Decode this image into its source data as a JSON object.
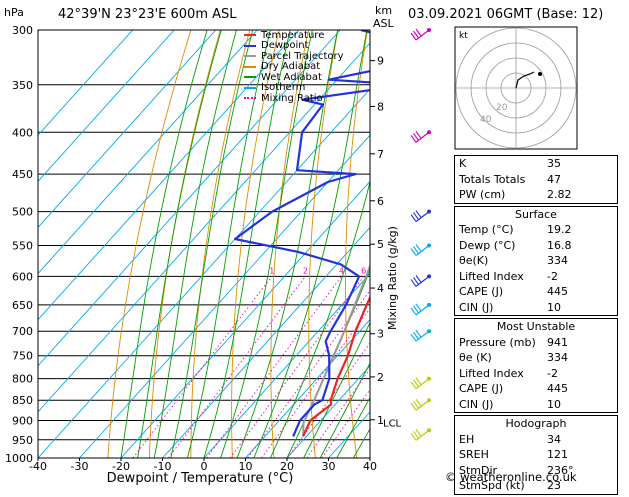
{
  "header": {
    "hpa_label": "hPa",
    "location": "42°39'N  23°23'E  600m  ASL",
    "km_label": "km",
    "asl_label": "ASL",
    "datetime": "03.09.2021  06GMT  (Base: 12)"
  },
  "legend": [
    {
      "label": "Temperature",
      "color": "#ee2222"
    },
    {
      "label": "Dewpoint",
      "color": "#2233dd"
    },
    {
      "label": "Parcel Trajectory",
      "color": "#999999"
    },
    {
      "label": "Dry Adiabat",
      "color": "#e08a00"
    },
    {
      "label": "Wet Adiabat",
      "color": "#00a000"
    },
    {
      "label": "Isotherm",
      "color": "#00aaee"
    },
    {
      "label": "Mixing Ratio",
      "color": "#ee00aa"
    }
  ],
  "chart_data": {
    "type": "skew-t",
    "xlabel": "Dewpoint / Temperature (°C)",
    "ylabel": "hPa",
    "right_axis_label": "Mixing Ratio (g/kg)",
    "temp_ticks": [
      -40,
      -30,
      -20,
      -10,
      0,
      10,
      20,
      30,
      40
    ],
    "pressure_levels": [
      300,
      350,
      400,
      450,
      500,
      550,
      600,
      650,
      700,
      750,
      800,
      850,
      900,
      950,
      1000
    ],
    "km_ticks": [
      {
        "label": "9",
        "p": 327
      },
      {
        "label": "8",
        "p": 372
      },
      {
        "label": "7",
        "p": 425
      },
      {
        "label": "6",
        "p": 485
      },
      {
        "label": "5",
        "p": 548
      },
      {
        "label": "4",
        "p": 620
      },
      {
        "label": "3",
        "p": 705
      },
      {
        "label": "2",
        "p": 796
      },
      {
        "label": "1",
        "p": 898
      }
    ],
    "lcl": {
      "label": "LCL",
      "p": 905
    },
    "mixing_ratio_labels": [
      "1",
      "2",
      "4",
      "6",
      "8",
      "10",
      "15",
      "20",
      "25"
    ],
    "mixing_ratio_values": [
      1,
      2,
      4,
      6,
      8,
      10,
      15,
      20,
      25
    ],
    "temperature": [
      {
        "p": 941,
        "t": 19.2
      },
      {
        "p": 900,
        "t": 17.5
      },
      {
        "p": 860,
        "t": 19.0
      },
      {
        "p": 850,
        "t": 18.0
      },
      {
        "p": 800,
        "t": 15.0
      },
      {
        "p": 750,
        "t": 12.5
      },
      {
        "p": 700,
        "t": 9.0
      },
      {
        "p": 650,
        "t": 6.0
      },
      {
        "p": 600,
        "t": 3.0
      },
      {
        "p": 550,
        "t": -1.0
      },
      {
        "p": 500,
        "t": -6.0
      },
      {
        "p": 450,
        "t": -11.0
      },
      {
        "p": 440,
        "t": -13.0
      },
      {
        "p": 400,
        "t": -17.0
      },
      {
        "p": 350,
        "t": -25.0
      },
      {
        "p": 300,
        "t": -33.0
      }
    ],
    "dewpoint": [
      {
        "p": 941,
        "t": 16.8
      },
      {
        "p": 900,
        "t": 15.0
      },
      {
        "p": 860,
        "t": 15.0
      },
      {
        "p": 850,
        "t": 16.0
      },
      {
        "p": 800,
        "t": 13.0
      },
      {
        "p": 750,
        "t": 8.0
      },
      {
        "p": 720,
        "t": 4.0
      },
      {
        "p": 700,
        "t": 3.0
      },
      {
        "p": 650,
        "t": 1.0
      },
      {
        "p": 600,
        "t": -2.0
      },
      {
        "p": 580,
        "t": -9.0
      },
      {
        "p": 560,
        "t": -22.0
      },
      {
        "p": 540,
        "t": -40.0
      },
      {
        "p": 500,
        "t": -37.0
      },
      {
        "p": 460,
        "t": -30.0
      },
      {
        "p": 450,
        "t": -25.0
      },
      {
        "p": 445,
        "t": -40.0
      },
      {
        "p": 400,
        "t": -47.0
      },
      {
        "p": 370,
        "t": -48.0
      },
      {
        "p": 365,
        "t": -54.0
      },
      {
        "p": 350,
        "t": -32.0
      },
      {
        "p": 345,
        "t": -52.0
      },
      {
        "p": 330,
        "t": -37.0
      },
      {
        "p": 320,
        "t": -34.0
      },
      {
        "p": 315,
        "t": -40.0
      },
      {
        "p": 305,
        "t": -48.0
      },
      {
        "p": 300,
        "t": -55.0
      }
    ],
    "parcel": [
      {
        "p": 941,
        "t": 19.2
      },
      {
        "p": 905,
        "t": 16.3
      },
      {
        "p": 850,
        "t": 14.0
      },
      {
        "p": 800,
        "t": 11.6
      },
      {
        "p": 700,
        "t": 6.3
      },
      {
        "p": 600,
        "t": -0.3
      },
      {
        "p": 500,
        "t": -8.6
      },
      {
        "p": 400,
        "t": -19.5
      },
      {
        "p": 300,
        "t": -35.0
      }
    ],
    "wind_barbs": [
      {
        "p": 300,
        "color": "#cc00cc"
      },
      {
        "p": 400,
        "color": "#cc00cc"
      },
      {
        "p": 500,
        "color": "#2233dd"
      },
      {
        "p": 550,
        "color": "#00aaee"
      },
      {
        "p": 600,
        "color": "#2233dd"
      },
      {
        "p": 650,
        "color": "#00aaee"
      },
      {
        "p": 700,
        "color": "#00aaee"
      },
      {
        "p": 800,
        "color": "#b8cc00"
      },
      {
        "p": 850,
        "color": "#b8cc00"
      },
      {
        "p": 925,
        "color": "#b8cc00"
      }
    ]
  },
  "hodograph": {
    "label": "kt",
    "ring_labels": [
      "20",
      "40"
    ],
    "trace": [
      {
        "u": 0,
        "v": 0
      },
      {
        "u": 2,
        "v": 8
      },
      {
        "u": 8,
        "v": 12
      },
      {
        "u": 14,
        "v": 14
      },
      {
        "u": 18,
        "v": 16
      }
    ]
  },
  "indices": {
    "basic": [
      {
        "label": "K",
        "value": "35"
      },
      {
        "label": "Totals Totals",
        "value": "47"
      },
      {
        "label": "PW (cm)",
        "value": "2.82"
      }
    ],
    "surface_title": "Surface",
    "surface": [
      {
        "label": "Temp (°C)",
        "value": "19.2"
      },
      {
        "label": "Dewp (°C)",
        "value": "16.8"
      },
      {
        "label": "θe(K)",
        "value": "334"
      },
      {
        "label": "Lifted Index",
        "value": "-2"
      },
      {
        "label": "CAPE (J)",
        "value": "445"
      },
      {
        "label": "CIN (J)",
        "value": "10"
      }
    ],
    "unstable_title": "Most Unstable",
    "unstable": [
      {
        "label": "Pressure (mb)",
        "value": "941"
      },
      {
        "label": "θe (K)",
        "value": "334"
      },
      {
        "label": "Lifted Index",
        "value": "-2"
      },
      {
        "label": "CAPE (J)",
        "value": "445"
      },
      {
        "label": "CIN (J)",
        "value": "10"
      }
    ],
    "hodo_title": "Hodograph",
    "hodo": [
      {
        "label": "EH",
        "value": "34"
      },
      {
        "label": "SREH",
        "value": "121"
      },
      {
        "label": "StmDir",
        "value": "236°"
      },
      {
        "label": "StmSpd (kt)",
        "value": "23"
      }
    ]
  },
  "footer": "© weatheronline.co.uk"
}
